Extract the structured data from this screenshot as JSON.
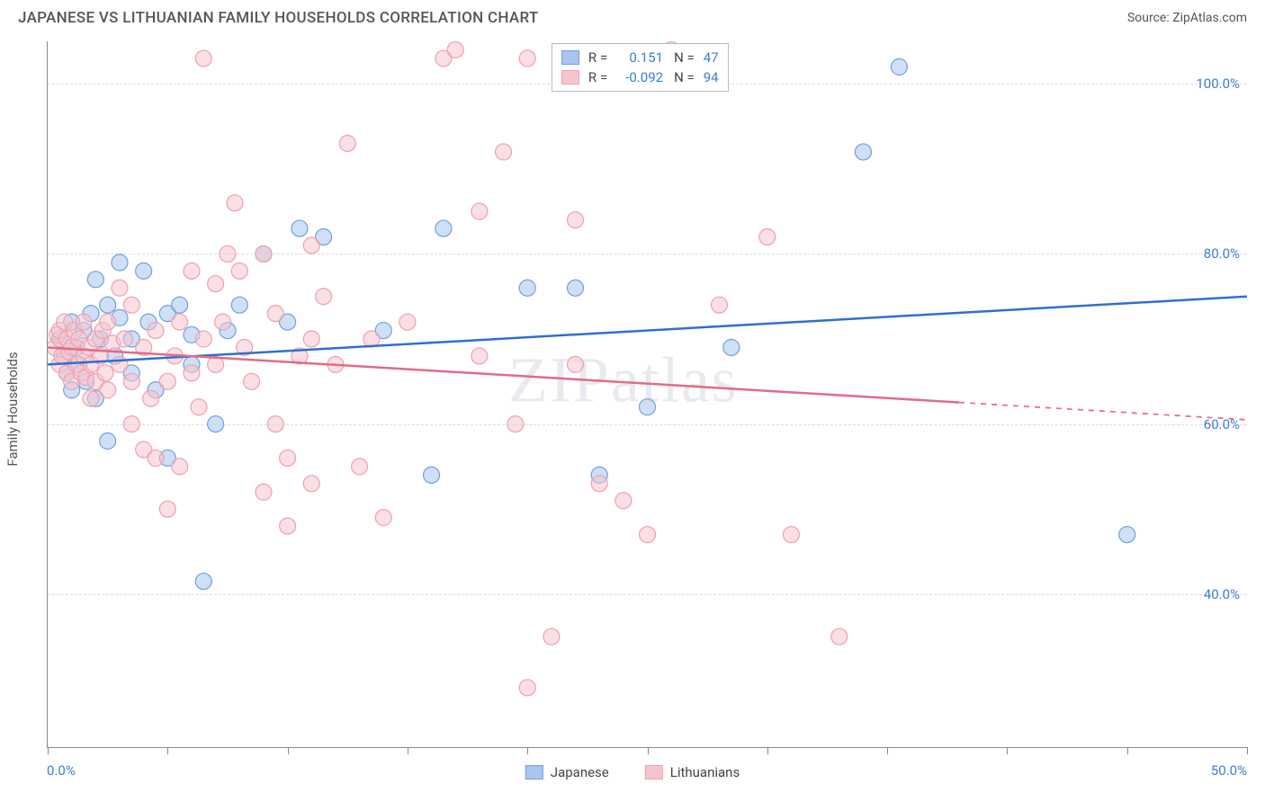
{
  "title": "JAPANESE VS LITHUANIAN FAMILY HOUSEHOLDS CORRELATION CHART",
  "source": "Source: ZipAtlas.com",
  "y_axis_title": "Family Households",
  "watermark": "ZIPatlas",
  "chart": {
    "type": "scatter",
    "background_color": "#ffffff",
    "grid_color": "#dddddd",
    "axis_color": "#888888",
    "tick_label_color": "#3b7dd8",
    "xlim": [
      0,
      50
    ],
    "ylim": [
      22,
      105
    ],
    "x_ticks": [
      0,
      5,
      10,
      15,
      20,
      25,
      30,
      35,
      40,
      45,
      50
    ],
    "x_tick_labels": {
      "0": "0.0%",
      "50": "50.0%"
    },
    "y_grid": [
      40,
      60,
      80,
      100
    ],
    "y_tick_labels": {
      "40": "40.0%",
      "60": "60.0%",
      "80": "80.0%",
      "100": "100.0%"
    },
    "marker_radius": 9,
    "marker_opacity": 0.55,
    "line_width": 2.5,
    "series": [
      {
        "key": "japanese",
        "label": "Japanese",
        "color_fill": "#a8c6ee",
        "color_stroke": "#6fa0de",
        "line_color": "#2f6fd0",
        "R": "0.151",
        "N": "47",
        "trend": {
          "x1": 0,
          "y1": 67.0,
          "x2": 50,
          "y2": 75.0,
          "dashed_from": null
        },
        "points": [
          [
            0.5,
            70
          ],
          [
            0.7,
            68
          ],
          [
            0.8,
            66
          ],
          [
            1,
            64
          ],
          [
            1,
            72
          ],
          [
            1.2,
            69
          ],
          [
            1.3,
            67
          ],
          [
            1.5,
            71
          ],
          [
            1.6,
            65
          ],
          [
            1.8,
            73
          ],
          [
            2,
            77
          ],
          [
            2,
            63
          ],
          [
            2.2,
            70
          ],
          [
            2.5,
            58
          ],
          [
            2.5,
            74
          ],
          [
            2.8,
            68
          ],
          [
            3,
            72.5
          ],
          [
            3,
            79
          ],
          [
            3.5,
            66
          ],
          [
            3.5,
            70
          ],
          [
            4,
            78
          ],
          [
            4.2,
            72
          ],
          [
            4.5,
            64
          ],
          [
            5,
            73
          ],
          [
            5,
            56
          ],
          [
            5.5,
            74
          ],
          [
            6,
            67
          ],
          [
            6,
            70.5
          ],
          [
            6.5,
            41.5
          ],
          [
            7,
            60
          ],
          [
            7.5,
            71
          ],
          [
            8,
            74
          ],
          [
            9,
            80
          ],
          [
            10,
            72
          ],
          [
            10.5,
            83
          ],
          [
            11.5,
            82
          ],
          [
            14,
            71
          ],
          [
            16,
            54
          ],
          [
            16.5,
            83
          ],
          [
            20,
            76
          ],
          [
            22,
            76
          ],
          [
            23,
            54
          ],
          [
            25,
            62
          ],
          [
            28.5,
            69
          ],
          [
            34,
            92
          ],
          [
            35.5,
            102
          ],
          [
            45,
            47
          ]
        ]
      },
      {
        "key": "lithuanians",
        "label": "Lithuanians",
        "color_fill": "#f6c4ce",
        "color_stroke": "#eea0b0",
        "line_color": "#e26b87",
        "R": "-0.092",
        "N": "94",
        "trend": {
          "x1": 0,
          "y1": 69.0,
          "x2": 50,
          "y2": 60.5,
          "dashed_from": 38
        },
        "points": [
          [
            0.3,
            69
          ],
          [
            0.4,
            70.5
          ],
          [
            0.5,
            67
          ],
          [
            0.5,
            71
          ],
          [
            0.6,
            68
          ],
          [
            0.7,
            72
          ],
          [
            0.8,
            66
          ],
          [
            0.8,
            70
          ],
          [
            0.9,
            68.5
          ],
          [
            1,
            65
          ],
          [
            1,
            69
          ],
          [
            1.1,
            71
          ],
          [
            1.2,
            67
          ],
          [
            1.3,
            70
          ],
          [
            1.4,
            66
          ],
          [
            1.5,
            68
          ],
          [
            1.5,
            72
          ],
          [
            1.6,
            65.5
          ],
          [
            1.7,
            69
          ],
          [
            1.8,
            67
          ],
          [
            1.8,
            63
          ],
          [
            2,
            70
          ],
          [
            2,
            65
          ],
          [
            2.2,
            68
          ],
          [
            2.3,
            71
          ],
          [
            2.4,
            66
          ],
          [
            2.5,
            64
          ],
          [
            2.5,
            72
          ],
          [
            2.7,
            69.5
          ],
          [
            3,
            67
          ],
          [
            3,
            76
          ],
          [
            3.2,
            70
          ],
          [
            3.5,
            65
          ],
          [
            3.5,
            60
          ],
          [
            3.5,
            74
          ],
          [
            4,
            57
          ],
          [
            4,
            69
          ],
          [
            4.3,
            63
          ],
          [
            4.5,
            56
          ],
          [
            4.5,
            71
          ],
          [
            5,
            65
          ],
          [
            5,
            50
          ],
          [
            5.3,
            68
          ],
          [
            5.5,
            55
          ],
          [
            5.5,
            72
          ],
          [
            6,
            66
          ],
          [
            6,
            78
          ],
          [
            6.3,
            62
          ],
          [
            6.5,
            70
          ],
          [
            6.5,
            103
          ],
          [
            7,
            76.5
          ],
          [
            7,
            67
          ],
          [
            7.3,
            72
          ],
          [
            7.5,
            80
          ],
          [
            7.8,
            86
          ],
          [
            8,
            78
          ],
          [
            8.2,
            69
          ],
          [
            8.5,
            65
          ],
          [
            9,
            52
          ],
          [
            9,
            80
          ],
          [
            9.5,
            60
          ],
          [
            9.5,
            73
          ],
          [
            10,
            56
          ],
          [
            10,
            48
          ],
          [
            10.5,
            68
          ],
          [
            11,
            81
          ],
          [
            11,
            53
          ],
          [
            11,
            70
          ],
          [
            11.5,
            75
          ],
          [
            12,
            67
          ],
          [
            12.5,
            93
          ],
          [
            13,
            55
          ],
          [
            13.5,
            70
          ],
          [
            14,
            49
          ],
          [
            15,
            72
          ],
          [
            16.5,
            103
          ],
          [
            17,
            104
          ],
          [
            18,
            85
          ],
          [
            18,
            68
          ],
          [
            19,
            92
          ],
          [
            19.5,
            60
          ],
          [
            20,
            103
          ],
          [
            20,
            29
          ],
          [
            21,
            35
          ],
          [
            22,
            84
          ],
          [
            22,
            67
          ],
          [
            23,
            53
          ],
          [
            24,
            51
          ],
          [
            25,
            47
          ],
          [
            26,
            104
          ],
          [
            28,
            74
          ],
          [
            30,
            82
          ],
          [
            31,
            47
          ],
          [
            33,
            35
          ]
        ]
      }
    ]
  },
  "legend_bottom": [
    {
      "key": "japanese",
      "label": "Japanese"
    },
    {
      "key": "lithuanians",
      "label": "Lithuanians"
    }
  ]
}
